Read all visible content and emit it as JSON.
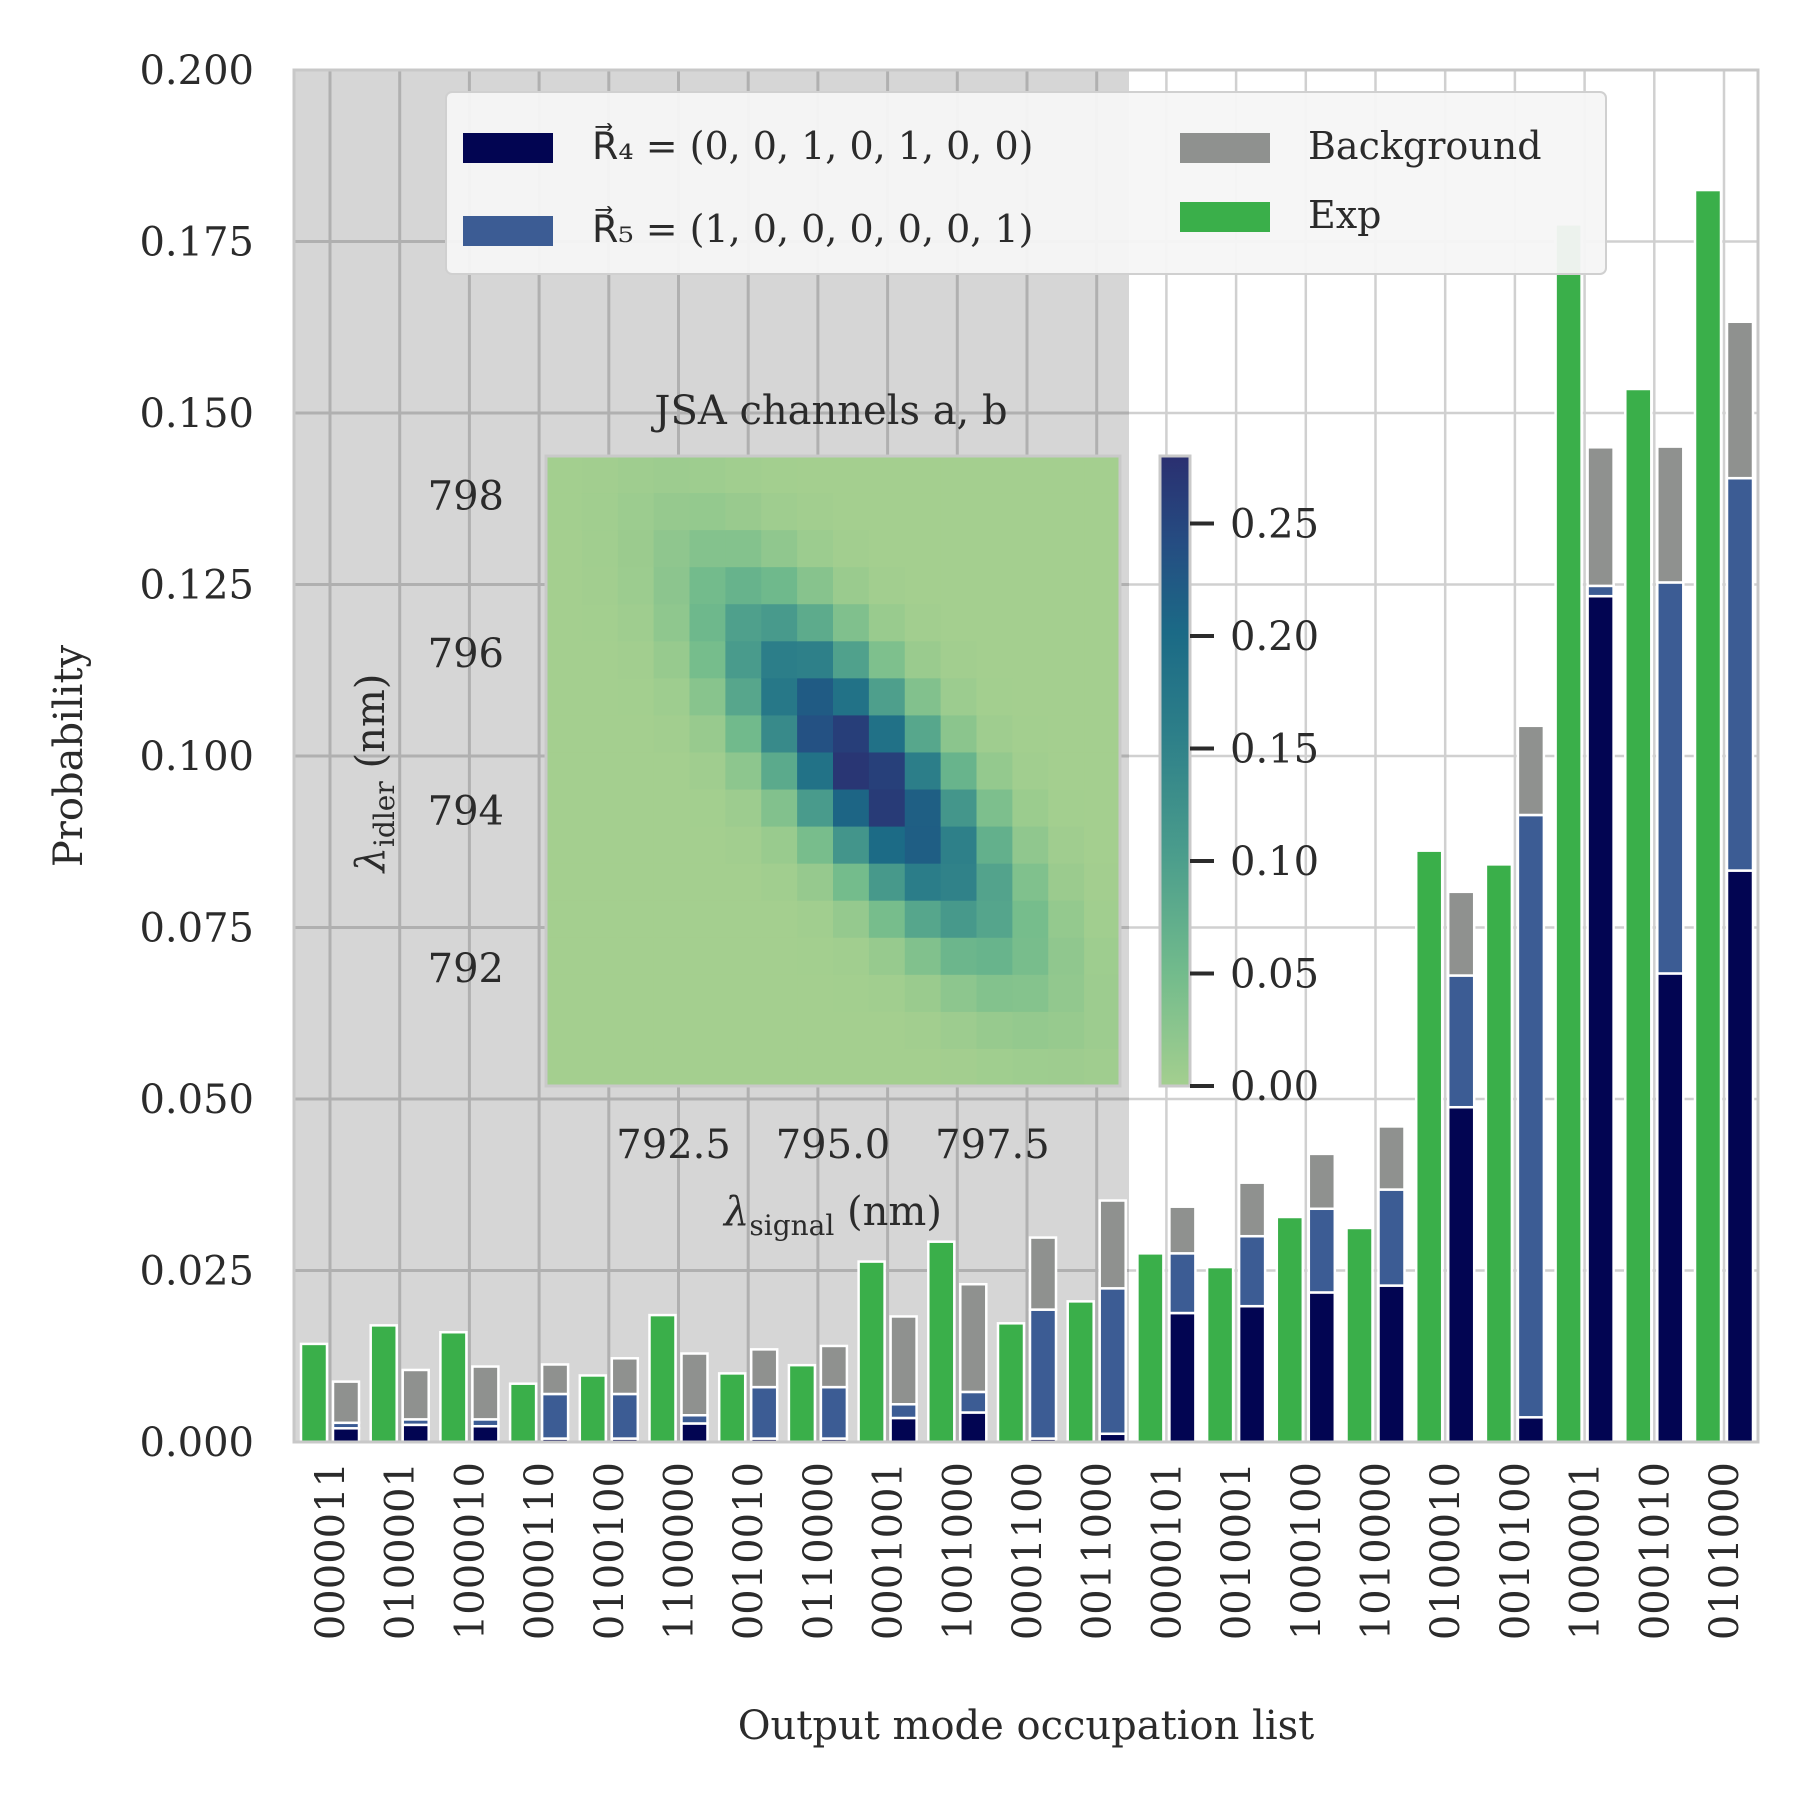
{
  "chart_data": [
    {
      "type": "bar",
      "ylabel": "Probability",
      "xlabel": "Output mode occupation list",
      "ylim": [
        0,
        0.2
      ],
      "yticks": [
        "0.000",
        "0.025",
        "0.050",
        "0.075",
        "0.100",
        "0.125",
        "0.150",
        "0.175",
        "0.200"
      ],
      "grid": true,
      "legend_position": "top",
      "categories": [
        "0000011",
        "0100001",
        "1000010",
        "0000110",
        "0100100",
        "1100000",
        "0010010",
        "0110000",
        "0001001",
        "1001000",
        "0001100",
        "0011000",
        "0000101",
        "0010001",
        "1000100",
        "1010000",
        "0100010",
        "0010100",
        "1000001",
        "0001010",
        "0101000"
      ],
      "series": [
        {
          "name": "Exp",
          "color": "#3aaf4a",
          "values": [
            0.0143,
            0.017,
            0.016,
            0.0085,
            0.0097,
            0.0185,
            0.01,
            0.0112,
            0.0263,
            0.0292,
            0.0173,
            0.0205,
            0.0275,
            0.0255,
            0.0328,
            0.0312,
            0.0862,
            0.0842,
            0.1775,
            0.1535,
            0.1825
          ]
        },
        {
          "name": "R4",
          "color": "#020552",
          "values": [
            0.002,
            0.0025,
            0.0023,
            0.0005,
            0.0005,
            0.0027,
            0.0005,
            0.0005,
            0.0035,
            0.0043,
            0.0005,
            0.0012,
            0.0188,
            0.0198,
            0.0218,
            0.0228,
            0.0488,
            0.0036,
            0.1233,
            0.0683,
            0.0833
          ]
        },
        {
          "name": "R5",
          "color": "#3c5c94",
          "values": [
            0.0008,
            0.0008,
            0.001,
            0.0065,
            0.0065,
            0.0012,
            0.0075,
            0.0075,
            0.002,
            0.003,
            0.0188,
            0.0212,
            0.0087,
            0.0102,
            0.0122,
            0.014,
            0.0192,
            0.0878,
            0.0015,
            0.057,
            0.0572
          ]
        },
        {
          "name": "Background",
          "color": "#8f918f",
          "values": [
            0.006,
            0.0072,
            0.0077,
            0.0043,
            0.0052,
            0.009,
            0.0055,
            0.006,
            0.0128,
            0.0157,
            0.0105,
            0.0128,
            0.0068,
            0.0078,
            0.008,
            0.0092,
            0.0122,
            0.013,
            0.0202,
            0.0198,
            0.0228
          ]
        }
      ],
      "legend": [
        {
          "label": "R⃗₄ = (0, 0, 1, 0, 1, 0, 0)",
          "color": "#020552"
        },
        {
          "label": "R⃗₅ = (1, 0, 0, 0, 0, 0, 1)",
          "color": "#3c5c94"
        },
        {
          "label": "Background",
          "color": "#8f918f"
        },
        {
          "label": "Exp",
          "color": "#3aaf4a"
        }
      ]
    },
    {
      "type": "heatmap",
      "title": "JSA channels a, b",
      "xlabel": "λsignal (nm)",
      "ylabel": "λidler (nm)",
      "xlim": [
        790.5,
        799.5
      ],
      "ylim": [
        790.5,
        798.5
      ],
      "xticks": [
        792.5,
        795.0,
        797.5
      ],
      "xtick_labels": [
        "792.5",
        "795.0",
        "797.5"
      ],
      "yticks": [
        792,
        794,
        796,
        798
      ],
      "ytick_labels": [
        "792",
        "794",
        "796",
        "798"
      ],
      "colorbar_range": [
        0,
        0.28
      ],
      "colorbar_ticks": [
        "0.00",
        "0.05",
        "0.10",
        "0.15",
        "0.20",
        "0.25"
      ],
      "anti_diagonal_peak": {
        "center_signal": 795.5,
        "center_idler": 794.5,
        "peak_value": 0.28
      }
    }
  ]
}
